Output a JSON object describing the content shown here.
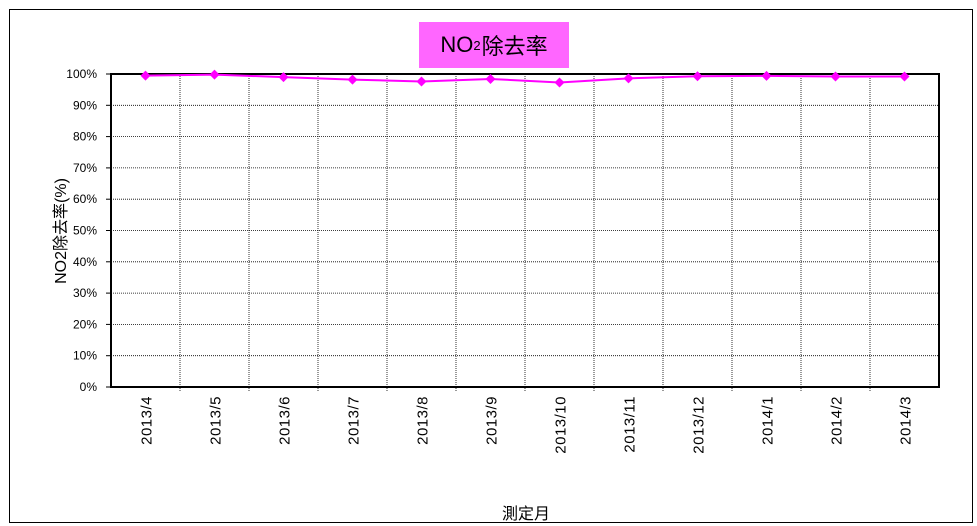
{
  "chart_data": {
    "type": "line",
    "title_main": "NO",
    "title_sub": "2",
    "title_rest": "除去率",
    "ylabel": "NO2除去率(%)",
    "xlabel": "測定月",
    "categories": [
      "2013/4",
      "2013/5",
      "2013/6",
      "2013/7",
      "2013/8",
      "2013/9",
      "2013/10",
      "2013/11",
      "2013/12",
      "2014/1",
      "2014/2",
      "2014/3"
    ],
    "series": [
      {
        "values": [
          99.5,
          99.8,
          99.0,
          98.2,
          97.6,
          98.4,
          97.3,
          98.6,
          99.3,
          99.4,
          99.2,
          99.2
        ],
        "color": "#ff00ff"
      }
    ],
    "ylim": [
      0,
      100
    ],
    "yticks": [
      "0%",
      "10%",
      "20%",
      "30%",
      "40%",
      "50%",
      "60%",
      "70%",
      "80%",
      "90%",
      "100%"
    ],
    "grid": true,
    "title_bg": "#ff66ff"
  }
}
